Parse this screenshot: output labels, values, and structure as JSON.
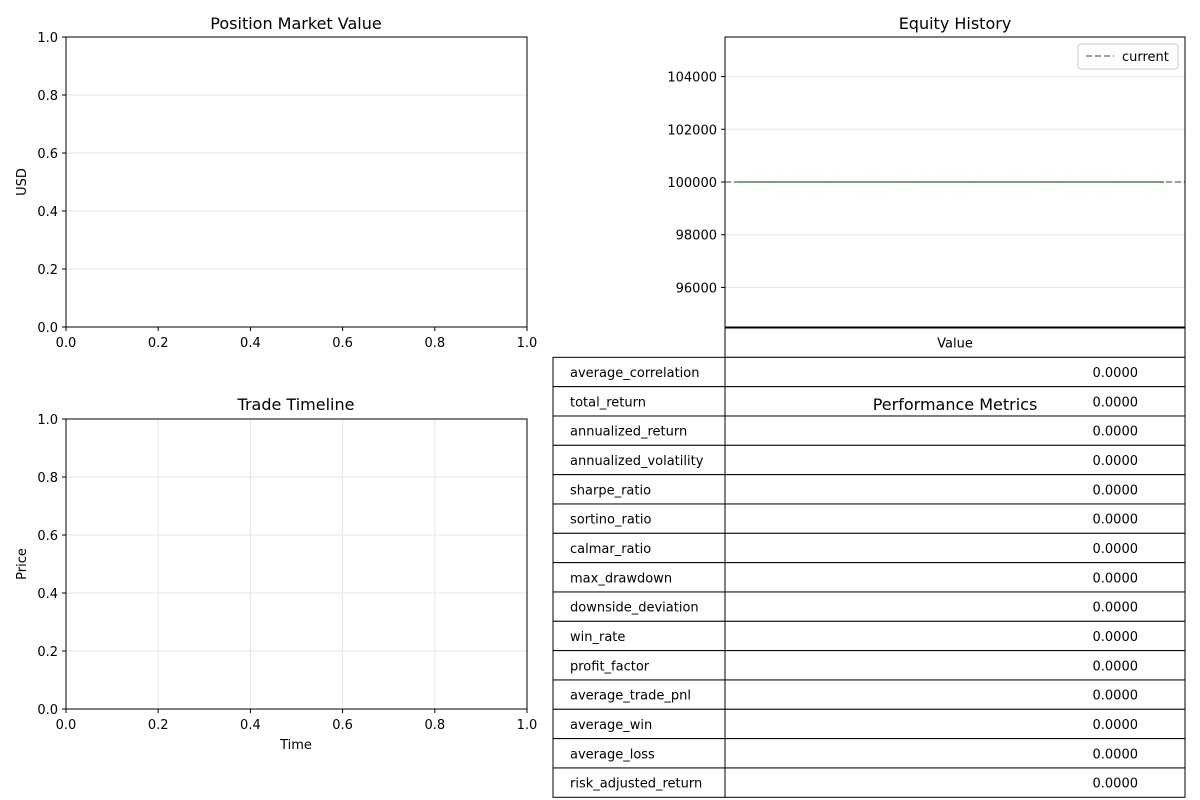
{
  "chart_data": [
    {
      "type": "line",
      "title": "Position Market Value",
      "xlabel": "",
      "ylabel": "USD",
      "xlim": [
        0,
        1
      ],
      "ylim": [
        0,
        1
      ],
      "xticks": [
        0.0,
        0.2,
        0.4,
        0.6,
        0.8,
        1.0
      ],
      "xtick_labels": [
        "0.0",
        "0.2",
        "0.4",
        "0.6",
        "0.8",
        "1.0"
      ],
      "yticks": [
        0.0,
        0.2,
        0.4,
        0.6,
        0.8,
        1.0
      ],
      "ytick_labels": [
        "0.0",
        "0.2",
        "0.4",
        "0.6",
        "0.8",
        "1.0"
      ],
      "grid": "y",
      "series": []
    },
    {
      "type": "line",
      "title": "Equity History",
      "xlabel": "",
      "ylabel": "",
      "ylim": [
        94500,
        105500
      ],
      "yticks": [
        96000,
        98000,
        100000,
        102000,
        104000
      ],
      "ytick_labels": [
        "96000",
        "98000",
        "100000",
        "102000",
        "104000"
      ],
      "grid": "y",
      "legend": "top-right",
      "series": [
        {
          "values": [
            100000,
            100000
          ],
          "color": "#2ca02c",
          "style": "solid"
        },
        {
          "name": "current",
          "values": [
            100000,
            100000
          ],
          "color": "#808080",
          "style": "dashed"
        }
      ]
    },
    {
      "type": "line",
      "title": "Trade Timeline",
      "xlabel": "Time",
      "ylabel": "Price",
      "xlim": [
        0,
        1
      ],
      "ylim": [
        0,
        1
      ],
      "xticks": [
        0.0,
        0.2,
        0.4,
        0.6,
        0.8,
        1.0
      ],
      "xtick_labels": [
        "0.0",
        "0.2",
        "0.4",
        "0.6",
        "0.8",
        "1.0"
      ],
      "yticks": [
        0.0,
        0.2,
        0.4,
        0.6,
        0.8,
        1.0
      ],
      "ytick_labels": [
        "0.0",
        "0.2",
        "0.4",
        "0.6",
        "0.8",
        "1.0"
      ],
      "grid": "both",
      "series": []
    },
    {
      "type": "table",
      "title": "Performance Metrics",
      "columns": [
        "Value"
      ],
      "rows": [
        {
          "label": "average_correlation",
          "value": "0.0000"
        },
        {
          "label": "total_return",
          "value": "0.0000"
        },
        {
          "label": "annualized_return",
          "value": "0.0000"
        },
        {
          "label": "annualized_volatility",
          "value": "0.0000"
        },
        {
          "label": "sharpe_ratio",
          "value": "0.0000"
        },
        {
          "label": "sortino_ratio",
          "value": "0.0000"
        },
        {
          "label": "calmar_ratio",
          "value": "0.0000"
        },
        {
          "label": "max_drawdown",
          "value": "0.0000"
        },
        {
          "label": "downside_deviation",
          "value": "0.0000"
        },
        {
          "label": "win_rate",
          "value": "0.0000"
        },
        {
          "label": "profit_factor",
          "value": "0.0000"
        },
        {
          "label": "average_trade_pnl",
          "value": "0.0000"
        },
        {
          "label": "average_win",
          "value": "0.0000"
        },
        {
          "label": "average_loss",
          "value": "0.0000"
        },
        {
          "label": "risk_adjusted_return",
          "value": "0.0000"
        }
      ]
    }
  ]
}
